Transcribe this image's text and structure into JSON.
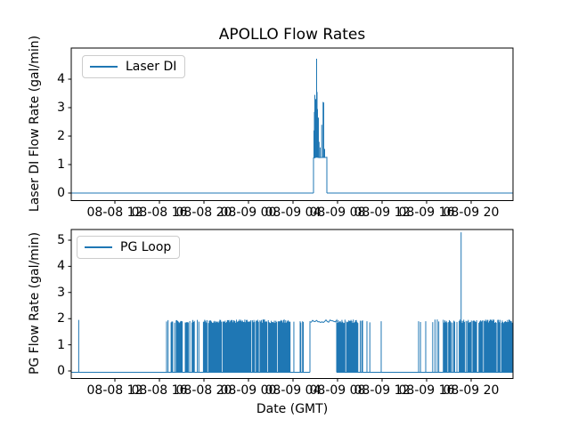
{
  "figure": {
    "title": "APOLLO Flow Rates",
    "xlabel": "Date (GMT)",
    "background": "#ffffff",
    "line_color": "#1f77b4",
    "axis_color": "#000000"
  },
  "chart_data": [
    {
      "type": "line",
      "title": "APOLLO Flow Rates",
      "series": [
        {
          "name": "Laser DI"
        }
      ],
      "legend_label": "Laser DI",
      "legend_position": "upper left",
      "color": "#1f77b4",
      "ylabel": "Laser DI Flow Rate (gal/min)",
      "yticks": [
        0,
        1,
        2,
        3,
        4
      ],
      "ylim": [
        -0.25,
        5.09
      ],
      "grid": false,
      "x_unit": "hours since 08-08 00:00 GMT",
      "xlim": [
        8.08,
        47.76
      ],
      "xticks": [
        12,
        16,
        20,
        24,
        28,
        32,
        36,
        40,
        44
      ],
      "xtick_labels": [
        "08-08 12",
        "08-08 16",
        "08-08 20",
        "08-09 00",
        "08-09 04",
        "08-09 08",
        "08-09 12",
        "08-09 16",
        "08-09 20"
      ],
      "baseline": 0.0,
      "segments": [
        {
          "kind": "flat",
          "t0": 8.08,
          "t1": 29.84,
          "value": 0.0
        },
        {
          "kind": "plateau",
          "t0": 29.84,
          "t1": 31.04,
          "value": 1.25,
          "noise": 0.02
        },
        {
          "kind": "flat",
          "t0": 31.04,
          "t1": 47.76,
          "value": 0.0
        }
      ],
      "spikes": [
        [
          29.88,
          2.2,
          1.25
        ],
        [
          29.92,
          2.85,
          1.25
        ],
        [
          29.96,
          3.45,
          1.25
        ],
        [
          30.0,
          2.6,
          1.25
        ],
        [
          30.04,
          3.3,
          1.25
        ],
        [
          30.08,
          2.8,
          1.25
        ],
        [
          30.12,
          4.72,
          1.25
        ],
        [
          30.16,
          3.55,
          1.25
        ],
        [
          30.2,
          2.95,
          1.25
        ],
        [
          30.24,
          2.4,
          1.25
        ],
        [
          30.28,
          2.65,
          1.25
        ],
        [
          30.34,
          1.8,
          1.25
        ],
        [
          30.44,
          1.6,
          1.25
        ],
        [
          30.58,
          2.4,
          1.25
        ],
        [
          30.7,
          3.2,
          1.25
        ],
        [
          30.76,
          3.18,
          1.25
        ],
        [
          30.84,
          1.55,
          1.25
        ]
      ]
    },
    {
      "type": "line",
      "title": "APOLLO Flow Rates",
      "series": [
        {
          "name": "PG Loop"
        }
      ],
      "legend_label": "PG Loop",
      "legend_position": "upper left",
      "color": "#1f77b4",
      "ylabel": "PG Flow Rate (gal/min)",
      "yticks": [
        0,
        1,
        2,
        3,
        4,
        5
      ],
      "ylim": [
        -0.27,
        5.41
      ],
      "grid": false,
      "x_unit": "hours since 08-08 00:00 GMT",
      "xlim": [
        8.08,
        47.76
      ],
      "xticks": [
        12,
        16,
        20,
        24,
        28,
        32,
        36,
        40,
        44
      ],
      "xtick_labels": [
        "08-08 12",
        "08-08 16",
        "08-08 20",
        "08-09 00",
        "08-09 04",
        "08-09 08",
        "08-09 12",
        "08-09 16",
        "08-09 20"
      ],
      "baseline": -0.05,
      "segments": [
        {
          "kind": "flat",
          "t0": 8.08,
          "t1": 16.64,
          "value": -0.05
        },
        {
          "kind": "burst",
          "t0": 16.64,
          "t1": 17.3,
          "value": 1.9,
          "density": 0.3
        },
        {
          "kind": "burst",
          "t0": 17.3,
          "t1": 20.0,
          "value": 1.9,
          "density": 0.55
        },
        {
          "kind": "burst",
          "t0": 20.0,
          "t1": 27.6,
          "value": 1.9,
          "density": 0.9
        },
        {
          "kind": "burst",
          "t0": 27.6,
          "t1": 28.2,
          "value": 1.9,
          "density": 0.5
        },
        {
          "kind": "flat",
          "t0": 28.2,
          "t1": 29.52,
          "value": -0.05
        },
        {
          "kind": "plateau",
          "t0": 29.52,
          "t1": 31.92,
          "value": 1.9,
          "noise": 0.05
        },
        {
          "kind": "burst",
          "t0": 31.92,
          "t1": 33.84,
          "value": 1.9,
          "density": 0.93
        },
        {
          "kind": "burst",
          "t0": 33.84,
          "t1": 34.26,
          "value": 1.9,
          "density": 0.45
        },
        {
          "kind": "flat",
          "t0": 34.26,
          "t1": 40.48,
          "value": -0.05
        },
        {
          "kind": "burst",
          "t0": 40.48,
          "t1": 41.5,
          "value": 1.9,
          "density": 0.55
        },
        {
          "kind": "burst",
          "t0": 41.5,
          "t1": 45.3,
          "value": 1.9,
          "density": 0.8
        },
        {
          "kind": "burst",
          "t0": 45.3,
          "t1": 47.76,
          "value": 1.9,
          "density": 0.92
        }
      ],
      "spikes": [
        [
          8.75,
          1.95,
          -0.05
        ],
        [
          28.64,
          1.9,
          -0.05
        ],
        [
          28.7,
          1.85,
          -0.05
        ],
        [
          28.86,
          1.9,
          -0.05
        ],
        [
          28.92,
          1.87,
          -0.05
        ],
        [
          34.64,
          1.9,
          -0.05
        ],
        [
          34.9,
          1.86,
          -0.05
        ],
        [
          35.92,
          1.9,
          -0.05
        ],
        [
          39.28,
          1.9,
          -0.05
        ],
        [
          39.45,
          1.87,
          -0.05
        ],
        [
          39.92,
          1.9,
          -0.05
        ],
        [
          43.1,
          5.3,
          -0.05
        ]
      ]
    }
  ]
}
